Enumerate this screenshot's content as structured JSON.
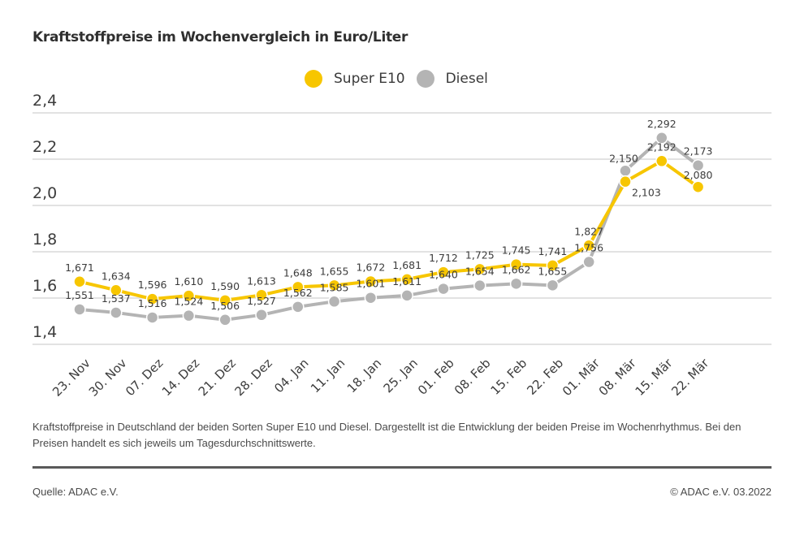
{
  "colors": {
    "super_e10": "#f7c600",
    "diesel": "#b4b4b4",
    "grid": "#d9d9d9",
    "text": "#3c3c3c"
  },
  "chart_data": {
    "type": "line",
    "title": "Kraftstoffpreise im Wochenvergleich in Euro/Liter",
    "xlabel": "",
    "ylabel": "",
    "ylim": [
      1.4,
      2.4
    ],
    "yticks": [
      1.4,
      1.6,
      1.8,
      2.0,
      2.2,
      2.4
    ],
    "ytick_labels": [
      "1,4",
      "1,6",
      "1,8",
      "2,0",
      "2,2",
      "2,4"
    ],
    "grid": true,
    "legend_position": "top-center",
    "categories": [
      "23. Nov",
      "30. Nov",
      "07. Dez",
      "14. Dez",
      "21. Dez",
      "28. Dez",
      "04. Jan",
      "11. Jan",
      "18. Jan",
      "25. Jan",
      "01. Feb",
      "08. Feb",
      "15. Feb",
      "22. Feb",
      "01. Mär",
      "08. Mär",
      "15. Mär",
      "22. Mär"
    ],
    "series": [
      {
        "name": "Super E10",
        "color": "#f7c600",
        "values": [
          1.671,
          1.634,
          1.596,
          1.61,
          1.59,
          1.613,
          1.648,
          1.655,
          1.672,
          1.681,
          1.712,
          1.725,
          1.745,
          1.741,
          1.827,
          2.103,
          2.192,
          2.08
        ],
        "labels": [
          "1,671",
          "1,634",
          "1,596",
          "1,610",
          "1,590",
          "1,613",
          "1,648",
          "1,655",
          "1,672",
          "1,681",
          "1,712",
          "1,725",
          "1,745",
          "1,741",
          "1,827",
          "2,103",
          "2,192",
          "2,080"
        ]
      },
      {
        "name": "Diesel",
        "color": "#b4b4b4",
        "values": [
          1.551,
          1.537,
          1.516,
          1.524,
          1.506,
          1.527,
          1.562,
          1.585,
          1.601,
          1.611,
          1.64,
          1.654,
          1.662,
          1.655,
          1.756,
          2.15,
          2.292,
          2.173
        ],
        "labels": [
          "1,551",
          "1,537",
          "1,516",
          "1,524",
          "1,506",
          "1,527",
          "1,562",
          "1,585",
          "1,601",
          "1,611",
          "1,640",
          "1,654",
          "1,662",
          "1,655",
          "1,756",
          "2,150",
          "2,292",
          "2,173"
        ]
      }
    ]
  },
  "note": "Kraftstoffpreise in Deutschland der beiden Sorten Super E10 und Diesel. Dargestellt ist die Entwicklung der beiden Preise im Wochenrhythmus. Bei den Preisen handelt es sich jeweils um Tagesdurchschnittswerte.",
  "source": "Quelle: ADAC e.V.",
  "copyright": "© ADAC e.V. 03.2022"
}
